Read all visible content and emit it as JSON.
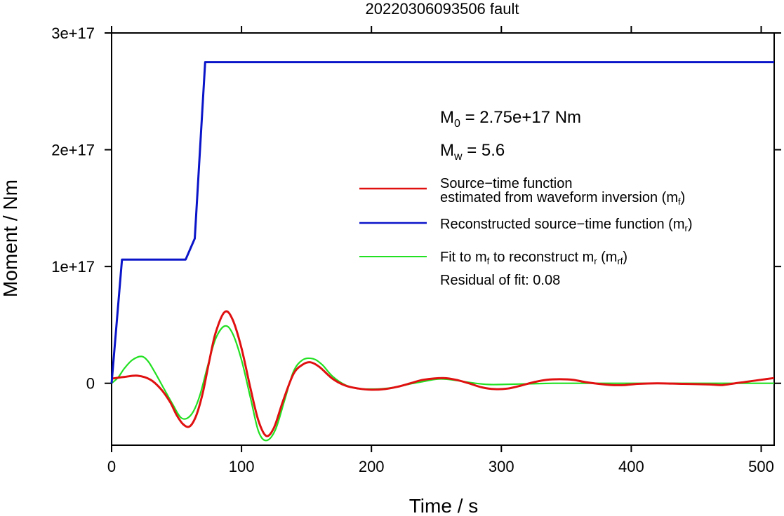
{
  "chart_data": {
    "type": "line",
    "title": "20220306093506 fault",
    "xlabel": "Time / s",
    "ylabel": "Moment / Nm",
    "xlim": [
      0,
      510
    ],
    "ylim": [
      -5.3e+16,
      3e+17
    ],
    "x_ticks": [
      0,
      100,
      200,
      300,
      400,
      500
    ],
    "x_tick_labels": [
      "0",
      "100",
      "200",
      "300",
      "400",
      "500"
    ],
    "y_ticks": [
      0,
      1e+17,
      2e+17,
      3e+17
    ],
    "y_tick_labels": [
      "0",
      "1e+17",
      "2e+17",
      "3e+17"
    ],
    "grid": false,
    "legend_position": "right",
    "annotations": {
      "m0_sym": "M",
      "m0_sub": "0",
      "m0_rest": " = 2.75e+17 Nm",
      "mw_sym": "M",
      "mw_sub": "w",
      "mw_rest": " = 5.6",
      "residual": "Residual of fit: 0.08"
    },
    "legend": {
      "red_line1": "Source−time function",
      "red_line2_a": "estimated from waveform inversion (m",
      "red_line2_sub": "f",
      "red_line2_b": ")",
      "blue_a": "Reconstructed source−time function (m",
      "blue_sub": "r",
      "blue_b": ")",
      "green_a": "Fit to m",
      "green_sub1": "f",
      "green_b": " to reconstruct m",
      "green_sub2": "r",
      "green_c": " (m",
      "green_sub3": "rf",
      "green_d": ")"
    },
    "series": [
      {
        "name": "Source−time function estimated from waveform inversion (mf)",
        "color": "#e01010",
        "x": [
          0,
          10,
          20,
          30,
          38,
          45,
          50,
          55,
          60,
          65,
          70,
          75,
          80,
          87,
          93,
          100,
          107,
          113,
          119,
          125,
          132,
          140,
          147,
          153,
          160,
          170,
          180,
          190,
          200,
          210,
          220,
          230,
          240,
          255,
          265,
          275,
          285,
          295,
          305,
          315,
          325,
          335,
          345,
          355,
          365,
          375,
          385,
          395,
          405,
          420,
          440,
          460,
          470,
          480,
          490,
          500,
          510
        ],
        "y": [
          4000000000000000.0,
          5500000000000000.0,
          6500000000000000.0,
          3000000000000000.0,
          -5000000000000000.0,
          -1.6e+16,
          -2.7e+16,
          -3.5e+16,
          -3.7e+16,
          -2.8e+16,
          -9000000000000000.0,
          1.8e+16,
          4.3e+16,
          6.1e+16,
          5.5e+16,
          3e+16,
          -5000000000000000.0,
          -3.2e+16,
          -4.5e+16,
          -3.8e+16,
          -1.5e+16,
          8000000000000000.0,
          1.6e+16,
          1.8e+16,
          1.4e+16,
          4000000000000000.0,
          -2000000000000000.0,
          -4500000000000000.0,
          -5500000000000000.0,
          -5000000000000000.0,
          -3000000000000000.0,
          0.0,
          3000000000000000.0,
          4500000000000000.0,
          3000000000000000.0,
          0.0,
          -3500000000000000.0,
          -5000000000000000.0,
          -4500000000000000.0,
          -2000000000000000.0,
          1000000000000000.0,
          3000000000000000.0,
          3500000000000000.0,
          3000000000000000.0,
          1000000000000000.0,
          -500000000000000.0,
          -1500000000000000.0,
          -1500000000000000.0,
          -500000000000000.0,
          0.0,
          -500000000000000.0,
          -1000000000000000.0,
          -1500000000000000.0,
          0.0,
          1500000000000000.0,
          3000000000000000.0,
          4500000000000000.0
        ]
      },
      {
        "name": "Reconstructed source−time function (mr)",
        "color": "#0a14c8",
        "x": [
          0,
          8,
          57,
          64,
          72,
          510
        ],
        "y": [
          0,
          1.06e+17,
          1.06e+17,
          1.24e+17,
          2.75e+17,
          2.75e+17
        ]
      },
      {
        "name": "Fit to mf to reconstruct mr (mrf)",
        "color": "#22e022",
        "x": [
          0,
          5,
          10,
          16,
          23,
          28,
          33,
          40,
          47,
          53,
          58,
          63,
          68,
          74,
          80,
          87,
          93,
          100,
          107,
          113,
          119,
          126,
          133,
          140,
          147,
          155,
          162,
          170,
          180,
          190,
          200,
          210,
          220,
          230,
          240,
          250,
          258,
          268,
          280,
          290,
          300,
          320,
          340,
          360,
          380,
          400,
          420,
          440,
          460,
          480,
          500,
          510
        ],
        "y": [
          0,
          5000000000000000.0,
          1.3e+16,
          2e+16,
          2.3e+16,
          1.9e+16,
          1e+16,
          -4000000000000000.0,
          -1.8e+16,
          -2.9e+16,
          -3e+16,
          -2.4e+16,
          -1e+16,
          1.5e+16,
          3.8e+16,
          4.9e+16,
          4.3e+16,
          2e+16,
          -1.3e+16,
          -4.1e+16,
          -4.9e+16,
          -4e+16,
          -1.5e+16,
          1e+16,
          2e+16,
          2.1e+16,
          1.6e+16,
          6000000000000000.0,
          -1500000000000000.0,
          -4500000000000000.0,
          -5000000000000000.0,
          -4500000000000000.0,
          -3000000000000000.0,
          -500000000000000.0,
          1500000000000000.0,
          3500000000000000.0,
          3500000000000000.0,
          2000000000000000.0,
          0.0,
          -1000000000000000.0,
          -1000000000000000.0,
          -500000000000000.0,
          0.0,
          0.0,
          0.0,
          0.0,
          0.0,
          0.0,
          0.0,
          0.0,
          0.0,
          0.0
        ]
      }
    ]
  }
}
